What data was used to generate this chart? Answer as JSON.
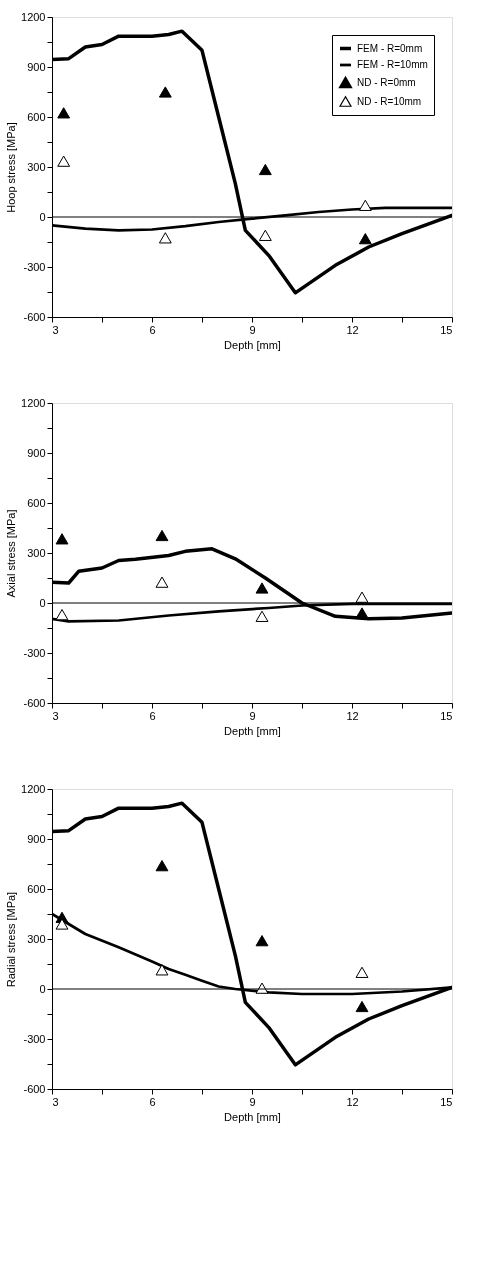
{
  "chart_data": [
    {
      "type": "line",
      "xlabel": "Depth [mm]",
      "ylabel": "Hoop stress [MPa]",
      "xlim": [
        3,
        15
      ],
      "ylim": [
        -600,
        1200
      ],
      "xticks": [
        3,
        {
          "value": 4.5,
          "label": null
        },
        6,
        {
          "value": 7.5,
          "label": null
        },
        9,
        {
          "value": 10.5,
          "label": null
        },
        12,
        {
          "value": 13.5,
          "label": null
        },
        15
      ],
      "yticks": [
        -600,
        {
          "value": -450,
          "label": null
        },
        -300,
        {
          "value": -150,
          "label": null
        },
        0,
        {
          "value": 150,
          "label": null
        },
        300,
        {
          "value": 450,
          "label": null
        },
        600,
        {
          "value": 750,
          "label": null
        },
        900,
        {
          "value": 1050,
          "label": null
        },
        1200
      ],
      "grid": false,
      "legend": "top right",
      "ref_lines": [
        {
          "axis": "y",
          "value": 0,
          "color": "#000000"
        }
      ],
      "series": [
        {
          "name": "FEM - R=0mm",
          "color": "#000000",
          "x": [
            3,
            3.5,
            4,
            4.5,
            5,
            6,
            6.5,
            6.9,
            7.5,
            8.0,
            8.5,
            8.8,
            9.5,
            10.3,
            11.5,
            12.5,
            13.5,
            15
          ],
          "values": [
            945,
            950,
            1020,
            1035,
            1085,
            1085,
            1095,
            1115,
            1000,
            600,
            200,
            -80,
            -230,
            -455,
            -290,
            -180,
            -100,
            10
          ]
        },
        {
          "name": "FEM - R=10mm",
          "color": "#000000",
          "x": [
            3,
            4,
            5,
            6,
            7,
            8,
            9,
            10,
            11,
            12,
            13,
            15
          ],
          "values": [
            -50,
            -70,
            -80,
            -75,
            -55,
            -30,
            -10,
            10,
            30,
            45,
            55,
            55
          ]
        },
        {
          "name": "ND - R=0mm",
          "type": "scatter",
          "marker": "triangle",
          "color": "#000000",
          "x": [
            3.35,
            6.4,
            9.4,
            12.4
          ],
          "values": [
            625,
            750,
            285,
            -130
          ]
        },
        {
          "name": "ND - R=10mm",
          "type": "scatter",
          "marker": "triangle",
          "color": "#000000",
          "x": [
            3.35,
            6.4,
            9.4,
            12.4
          ],
          "values": [
            335,
            -125,
            -110,
            70
          ]
        }
      ]
    },
    {
      "type": "line",
      "xlabel": "Depth [mm]",
      "ylabel": "Axial stress [MPa]",
      "xlim": [
        3,
        15
      ],
      "ylim": [
        -600,
        1200
      ],
      "xticks": [
        3,
        {
          "value": 4.5,
          "label": null
        },
        6,
        {
          "value": 7.5,
          "label": null
        },
        9,
        {
          "value": 10.5,
          "label": null
        },
        12,
        {
          "value": 13.5,
          "label": null
        },
        15
      ],
      "yticks": [
        -600,
        {
          "value": -450,
          "label": null
        },
        -300,
        {
          "value": -150,
          "label": null
        },
        0,
        {
          "value": 150,
          "label": null
        },
        300,
        {
          "value": 450,
          "label": null
        },
        600,
        {
          "value": 750,
          "label": null
        },
        900,
        {
          "value": 1050,
          "label": null
        },
        1200
      ],
      "grid": false,
      "legend": "top right",
      "ref_lines": [
        {
          "axis": "y",
          "value": 0,
          "color": "#000000"
        }
      ],
      "series": [
        {
          "name": "FEM - R=0mm",
          "color": "#000000",
          "x": [
            3,
            3.5,
            3.8,
            4.5,
            5,
            5.5,
            6.5,
            7,
            7.8,
            8.5,
            9.4,
            10.5,
            11.5,
            12.5,
            13.5,
            15
          ],
          "values": [
            125,
            120,
            190,
            210,
            255,
            262,
            285,
            310,
            325,
            265,
            150,
            0,
            -80,
            -95,
            -90,
            -60
          ]
        },
        {
          "name": "FEM - R=10mm",
          "color": "#000000",
          "x": [
            3,
            3.5,
            5,
            6.5,
            8,
            9.5,
            10.5,
            12,
            15
          ],
          "values": [
            -95,
            -110,
            -105,
            -75,
            -50,
            -30,
            -15,
            -5,
            -5
          ]
        },
        {
          "name": "ND - R=0mm",
          "type": "scatter",
          "marker": "triangle",
          "color": "#000000",
          "x": [
            3.3,
            6.3,
            9.3,
            12.3
          ],
          "values": [
            385,
            405,
            90,
            -60
          ]
        },
        {
          "name": "ND - R=10mm",
          "type": "scatter",
          "marker": "triangle",
          "color": "#000000",
          "x": [
            3.3,
            6.3,
            9.3,
            12.3
          ],
          "values": [
            -70,
            125,
            -80,
            35
          ]
        }
      ]
    },
    {
      "type": "line",
      "xlabel": "Depth [mm]",
      "ylabel": "Radial stress [MPa]",
      "xlim": [
        3,
        15
      ],
      "ylim": [
        -600,
        1200
      ],
      "xticks": [
        3,
        {
          "value": 4.5,
          "label": null
        },
        6,
        {
          "value": 7.5,
          "label": null
        },
        9,
        {
          "value": 10.5,
          "label": null
        },
        12,
        {
          "value": 13.5,
          "label": null
        },
        15
      ],
      "yticks": [
        -600,
        {
          "value": -450,
          "label": null
        },
        -300,
        {
          "value": -150,
          "label": null
        },
        0,
        {
          "value": 150,
          "label": null
        },
        300,
        {
          "value": 450,
          "label": null
        },
        600,
        {
          "value": 750,
          "label": null
        },
        900,
        {
          "value": 1050,
          "label": null
        },
        1200
      ],
      "grid": false,
      "legend": "top right",
      "ref_lines": [
        {
          "axis": "y",
          "value": 0,
          "color": "#000000"
        }
      ],
      "series": [
        {
          "name": "FEM - R=0mm",
          "color": "#000000",
          "x": [
            3,
            3.5,
            4,
            4.5,
            5,
            6,
            6.5,
            6.9,
            7.5,
            8.0,
            8.5,
            8.8,
            9.5,
            10.3,
            11.5,
            12.5,
            13.5,
            15
          ],
          "values": [
            945,
            950,
            1020,
            1035,
            1085,
            1085,
            1095,
            1115,
            1000,
            600,
            200,
            -80,
            -230,
            -455,
            -290,
            -180,
            -100,
            10
          ]
        },
        {
          "name": "FEM - R=10mm",
          "color": "#000000",
          "x": [
            3,
            3.5,
            4,
            5,
            6,
            6.5,
            7,
            7.5,
            8,
            8.5,
            9.5,
            10.5,
            12,
            13.5,
            15
          ],
          "values": [
            450,
            390,
            330,
            250,
            165,
            120,
            85,
            50,
            15,
            0,
            -20,
            -30,
            -30,
            -15,
            10
          ]
        },
        {
          "name": "ND - R=0mm",
          "type": "scatter",
          "marker": "triangle",
          "color": "#000000",
          "x": [
            3.3,
            6.3,
            9.3,
            12.3
          ],
          "values": [
            430,
            740,
            290,
            -105
          ]
        },
        {
          "name": "ND - R=10mm",
          "type": "scatter",
          "marker": "triangle",
          "color": "#000000",
          "x": [
            3.3,
            6.3,
            9.3,
            12.3
          ],
          "values": [
            390,
            115,
            5,
            100
          ]
        }
      ]
    }
  ]
}
